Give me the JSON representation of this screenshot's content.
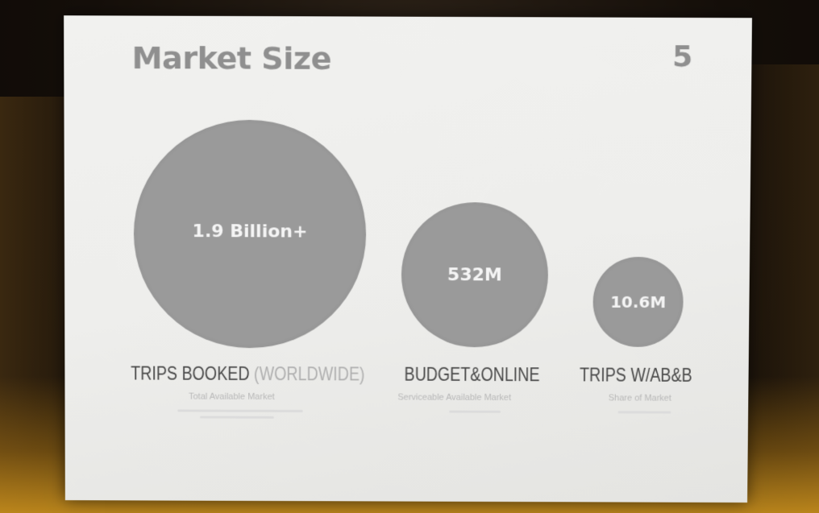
{
  "slide": {
    "title": "Market Size",
    "number": "5"
  },
  "markets": [
    {
      "value": "1.9 Billion+",
      "heading": "TRIPS BOOKED",
      "heading_extra": "(WORLDWIDE)",
      "subtitle": "Total Available Market"
    },
    {
      "value": "532M",
      "heading": "BUDGET&ONLINE",
      "subtitle": "Serviceable Available Market"
    },
    {
      "value": "10.6M",
      "heading": "TRIPS W/AB&B",
      "subtitle": "Share of Market"
    }
  ],
  "colors": {
    "circle": "#9a9a9a",
    "title": "#8f8f8f",
    "slide_background": "#eeeeec"
  }
}
